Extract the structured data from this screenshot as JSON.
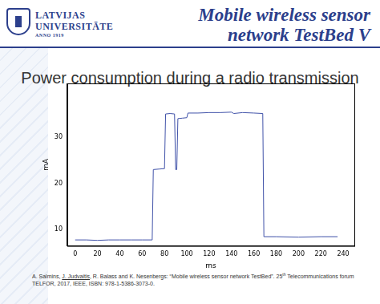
{
  "header": {
    "logo": [
      "LATVIJAS",
      "UNIVERSITĀTE",
      "ANNO 1919"
    ],
    "title": [
      "Mobile wireless sensor",
      "network TestBed V"
    ]
  },
  "slide_title": "Power consumption during a radio transmission",
  "citation": {
    "before": "A. Salmins, ",
    "underlined": "J. Judvaitis",
    "after": ", R. Balass and K. Nesenbergs: “Mobile wireless sensor network TestBed”. 25",
    "superscript": "th",
    "rest": " Telecommunications forum TELFOR, 2017, IEEE, ISBN: 978-1-5386-3073-0."
  },
  "chart_data": {
    "type": "line",
    "x_label": "ms",
    "y_label": "mA",
    "color": "#3f51a8",
    "x": [
      0,
      10,
      20,
      30,
      40,
      50,
      60,
      69,
      70,
      75,
      80,
      81,
      85,
      89,
      90,
      91,
      92,
      96,
      100,
      101,
      110,
      120,
      130,
      140,
      142,
      150,
      160,
      168,
      169,
      180,
      200,
      220,
      235
    ],
    "values": [
      7.8,
      7.8,
      7.7,
      7.8,
      7.8,
      7.8,
      7.8,
      7.8,
      23.0,
      23.1,
      23.2,
      35.0,
      35.1,
      35.0,
      23.0,
      23.0,
      34.0,
      34.1,
      34.2,
      35.2,
      35.2,
      35.3,
      35.3,
      35.4,
      35.1,
      35.3,
      35.2,
      35.1,
      8.5,
      8.5,
      8.4,
      8.5,
      8.5
    ],
    "xlim": [
      -7,
      250
    ],
    "xticks": [
      0,
      20,
      40,
      60,
      80,
      100,
      120,
      140,
      160,
      180,
      200,
      220,
      240
    ],
    "ylim": [
      6.5,
      41.6
    ],
    "yticks": [
      10,
      20,
      30
    ],
    "grid": false
  }
}
